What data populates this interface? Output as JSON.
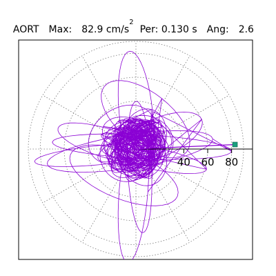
{
  "header": {
    "label": "AORT",
    "max_label": "Max:",
    "max_value": "82.9",
    "max_unit": "cm/s",
    "max_unit_power": "2",
    "period_label": "Per:",
    "period_value": "0.130 s",
    "angle_label": "Ang:",
    "angle_value": "2.6"
  },
  "colors": {
    "trace": "#8a00d4",
    "marker": "#1a9e7e",
    "frame": "#000000",
    "grid": "#777777"
  },
  "chart_data": {
    "type": "polar",
    "radial_ticks": [
      "40",
      "60",
      "80"
    ],
    "rmax": 90,
    "grid_rings": [
      20,
      40,
      60,
      80
    ],
    "spoke_step_deg": 30,
    "grid": "dotted",
    "max_vector": {
      "magnitude": 82.9,
      "angle_deg": 2.6
    },
    "trace_description_free": true
  }
}
